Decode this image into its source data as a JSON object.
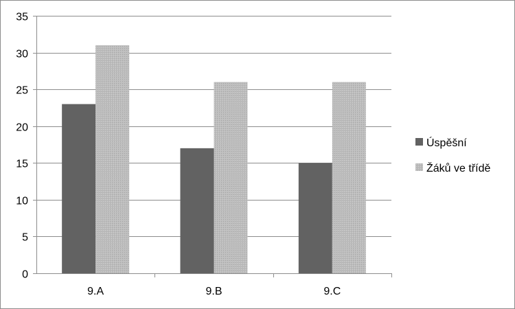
{
  "chart_data": {
    "type": "bar",
    "title": "",
    "xlabel": "",
    "ylabel": "",
    "categories": [
      "9.A",
      "9.B",
      "9.C"
    ],
    "series": [
      {
        "name": "Úspěšní",
        "values": [
          23,
          17,
          15
        ],
        "color": "#626262"
      },
      {
        "name": "Žáků ve třídě",
        "values": [
          31,
          26,
          26
        ],
        "color": "#b4b4b4"
      }
    ],
    "ylim": [
      0,
      35
    ],
    "yticks": [
      "0",
      "5",
      "10",
      "15",
      "20",
      "25",
      "30",
      "35"
    ],
    "grid": true,
    "legend_position": "right"
  }
}
